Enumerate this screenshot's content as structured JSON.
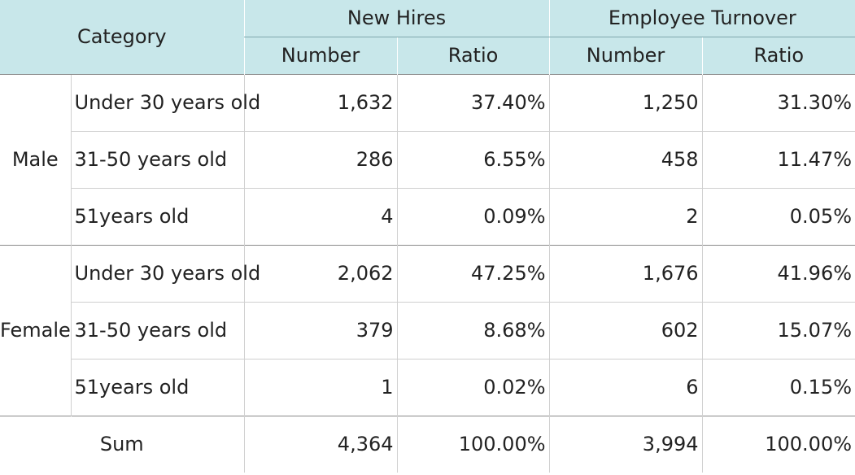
{
  "header": {
    "category": "Category",
    "groups": [
      "New Hires",
      "Employee Turnover"
    ],
    "subcolumns": [
      "Number",
      "Ratio",
      "Number",
      "Ratio"
    ]
  },
  "sections": [
    {
      "label": "Male",
      "rows": [
        {
          "category": "Under 30 years old",
          "values": [
            "1,632",
            "37.40%",
            "1,250",
            "31.30%"
          ]
        },
        {
          "category": "31-50 years old",
          "values": [
            "286",
            "6.55%",
            "458",
            "11.47%"
          ]
        },
        {
          "category": "51years old",
          "values": [
            "4",
            "0.09%",
            "2",
            "0.05%"
          ]
        }
      ]
    },
    {
      "label": "Female",
      "rows": [
        {
          "category": "Under 30 years old",
          "values": [
            "2,062",
            "47.25%",
            "1,676",
            "41.96%"
          ]
        },
        {
          "category": "31-50 years old",
          "values": [
            "379",
            "8.68%",
            "602",
            "15.07%"
          ]
        },
        {
          "category": "51years old",
          "values": [
            "1",
            "0.02%",
            "6",
            "0.15%"
          ]
        }
      ]
    }
  ],
  "sum": {
    "label": "Sum",
    "values": [
      "4,364",
      "100.00%",
      "3,994",
      "100.00%"
    ]
  }
}
